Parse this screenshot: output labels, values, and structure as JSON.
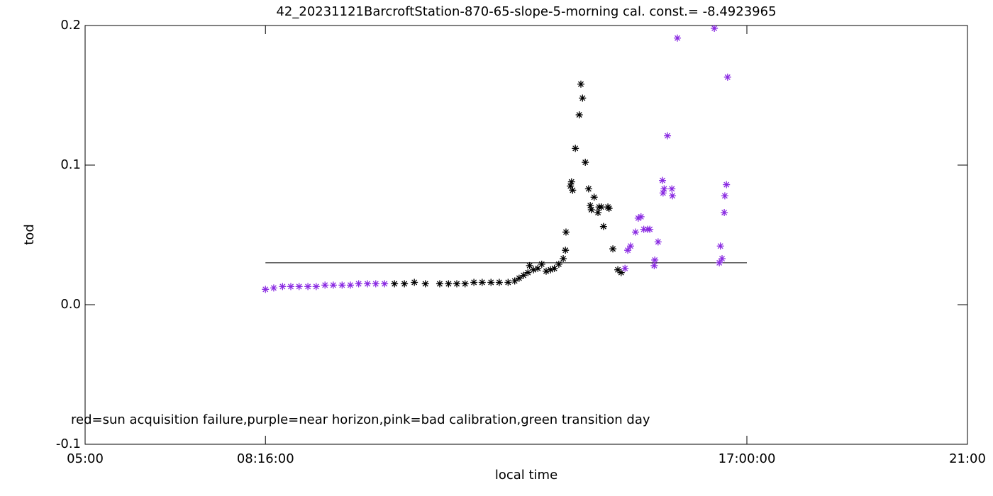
{
  "chart_data": {
    "type": "scatter",
    "title": "42_20231121BarcroftStation-870-65-slope-5-morning cal. const.= -8.4923965",
    "xlabel": "local time",
    "ylabel": "tod",
    "annotation": "red=sun acquisition failure,purple=near horizon,pink=bad calibration,green transition day",
    "xlim": [
      5,
      21
    ],
    "ylim": [
      -0.1,
      0.2
    ],
    "xticks": [
      {
        "value": 5,
        "label": "05:00"
      },
      {
        "value": 8.27,
        "label": "08:16:00"
      },
      {
        "value": 17,
        "label": "17:00:00"
      },
      {
        "value": 21,
        "label": "21:00"
      }
    ],
    "yticks": [
      -0.1,
      {
        "value": 0,
        "label": "0.0"
      },
      0.1,
      0.2
    ],
    "reference_line": {
      "y": 0.03,
      "x": [
        8.27,
        17
      ],
      "color": "#000000"
    },
    "series": [
      {
        "color": "#8a2be2",
        "x": [
          8.27,
          8.42,
          8.58,
          8.73,
          8.88,
          9.04,
          9.19,
          9.35,
          9.5,
          9.66,
          9.81,
          9.96,
          10.12,
          10.27,
          10.43
        ],
        "values": [
          0.011,
          0.012,
          0.013,
          0.013,
          0.013,
          0.013,
          0.013,
          0.014,
          0.014,
          0.014,
          0.014,
          0.015,
          0.015,
          0.015,
          0.015
        ]
      },
      {
        "color": "#000000",
        "x": [
          10.61,
          10.79,
          10.97,
          11.17,
          11.43,
          11.59,
          11.74,
          11.89,
          12.05,
          12.2,
          12.36,
          12.51,
          12.67,
          12.79,
          12.87,
          12.95,
          13.03,
          13.06,
          13.13,
          13.21,
          13.28,
          13.36,
          13.44,
          13.51,
          13.59,
          13.67,
          13.71,
          13.72,
          13.8,
          13.82,
          13.84,
          13.89,
          13.96,
          13.99,
          14.02,
          14.07,
          14.13,
          14.16,
          14.18,
          14.23,
          14.3,
          14.32,
          14.36,
          14.4,
          14.48,
          14.5,
          14.57,
          14.66,
          14.72
        ],
        "values": [
          0.015,
          0.015,
          0.016,
          0.015,
          0.015,
          0.015,
          0.015,
          0.015,
          0.016,
          0.016,
          0.016,
          0.016,
          0.016,
          0.017,
          0.019,
          0.021,
          0.023,
          0.028,
          0.025,
          0.026,
          0.029,
          0.024,
          0.025,
          0.026,
          0.029,
          0.033,
          0.039,
          0.052,
          0.085,
          0.088,
          0.082,
          0.112,
          0.136,
          0.158,
          0.148,
          0.102,
          0.083,
          0.071,
          0.068,
          0.077,
          0.066,
          0.07,
          0.07,
          0.056,
          0.07,
          0.069,
          0.04,
          0.025,
          0.023
        ]
      },
      {
        "color": "#8a2be2",
        "x": [
          14.79,
          14.84,
          14.89,
          14.98,
          15.03,
          15.08,
          15.13,
          15.2,
          15.24,
          15.32,
          15.33,
          15.39,
          15.47,
          15.48,
          15.5,
          15.56,
          15.64,
          15.65,
          15.74,
          16.41,
          16.5,
          16.52,
          16.55,
          16.59,
          16.6,
          16.63,
          16.65
        ],
        "values": [
          0.026,
          0.039,
          0.042,
          0.052,
          0.062,
          0.063,
          0.054,
          0.054,
          0.054,
          0.028,
          0.032,
          0.045,
          0.089,
          0.08,
          0.083,
          0.121,
          0.083,
          0.078,
          0.191,
          0.198,
          0.03,
          0.042,
          0.033,
          0.066,
          0.078,
          0.086,
          0.163
        ]
      }
    ]
  }
}
